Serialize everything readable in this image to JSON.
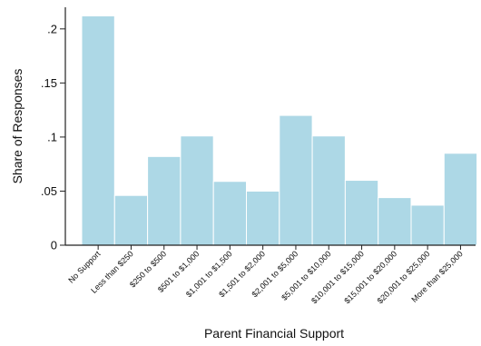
{
  "chart_data": {
    "type": "bar",
    "title": "",
    "xlabel": "Parent Financial Support",
    "ylabel": "Share of Responses",
    "categories": [
      "No Support",
      "Less than $250",
      "$250 to $500",
      "$501 to $1,000",
      "$1,001 to $1,500",
      "$1,501 to $2,000",
      "$2,001 to $5,000",
      "$5,001 to $10,000",
      "$10,001 to $15,000",
      "$15,001 to $20,000",
      "$20,001 to $25,000",
      "More than $25,000"
    ],
    "values": [
      0.212,
      0.046,
      0.082,
      0.101,
      0.059,
      0.05,
      0.12,
      0.101,
      0.06,
      0.044,
      0.037,
      0.085
    ],
    "ylim": [
      0,
      0.22
    ],
    "yticks": [
      0,
      0.05,
      0.1,
      0.15,
      0.2
    ],
    "ytick_labels": [
      "0",
      ".05",
      ".1",
      ".15",
      ".2"
    ],
    "bar_color": "#add8e6",
    "grid": false,
    "legend": "none"
  }
}
